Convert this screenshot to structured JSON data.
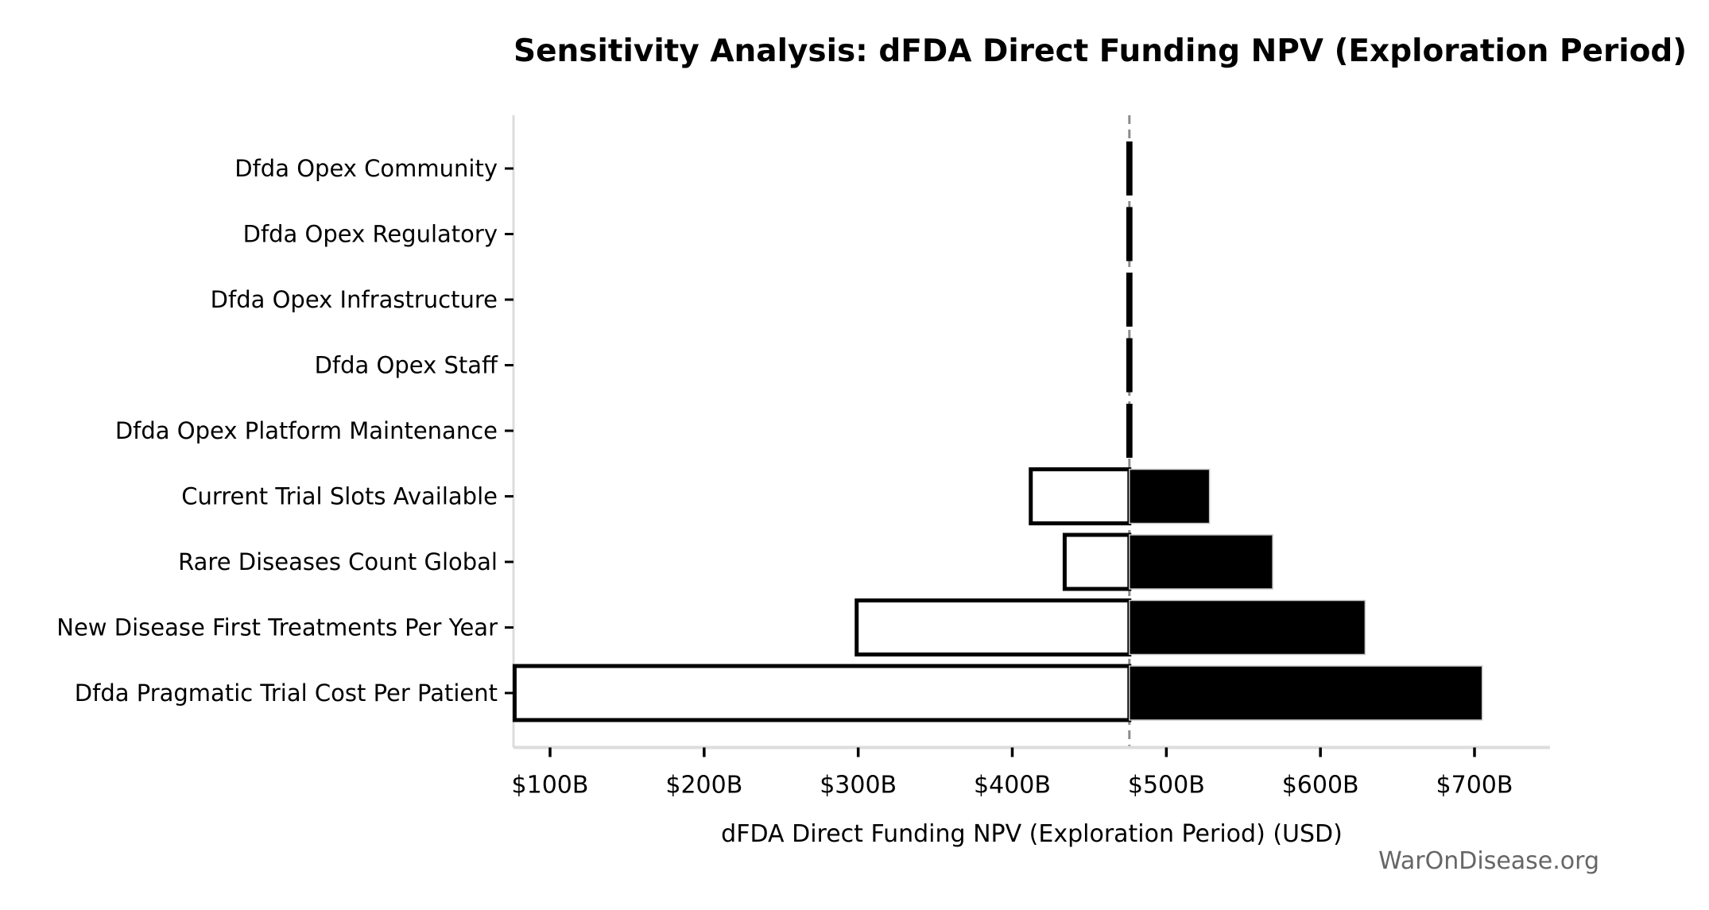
{
  "page": {
    "watermark": "WarOnDisease.org",
    "background_color": "#ffffff"
  },
  "chart_data": {
    "type": "bar",
    "subtype": "tornado-sensitivity",
    "orientation": "horizontal",
    "title": "Sensitivity Analysis: dFDA Direct Funding NPV (Exploration Period)",
    "xlabel": "dFDA Direct Funding NPV (Exploration Period) (USD)",
    "ylabel": "",
    "value_unit": "billions of USD",
    "baseline_value": 476,
    "xlim": [
      76,
      748
    ],
    "x_ticks": [
      100,
      200,
      300,
      400,
      500,
      600,
      700
    ],
    "x_tick_labels": [
      "$100B",
      "$200B",
      "$300B",
      "$400B",
      "$500B",
      "$600B",
      "$700B"
    ],
    "grid": false,
    "legend": null,
    "categories_top_to_bottom": [
      "Dfda Opex Community",
      "Dfda Opex Regulatory",
      "Dfda Opex Infrastructure",
      "Dfda Opex Staff",
      "Dfda Opex Platform Maintenance",
      "Current Trial Slots Available",
      "Rare Diseases Count Global",
      "New Disease First Treatments Per Year",
      "Dfda Pragmatic Trial Cost Per Patient"
    ],
    "rows": [
      {
        "label": "Dfda Opex Community",
        "low": 474,
        "high": 478
      },
      {
        "label": "Dfda Opex Regulatory",
        "low": 474,
        "high": 478
      },
      {
        "label": "Dfda Opex Infrastructure",
        "low": 474,
        "high": 478
      },
      {
        "label": "Dfda Opex Staff",
        "low": 474,
        "high": 478
      },
      {
        "label": "Dfda Opex Platform Maintenance",
        "low": 474,
        "high": 478
      },
      {
        "label": "Current Trial Slots Available",
        "low": 412,
        "high": 528
      },
      {
        "label": "Rare Diseases Count Global",
        "low": 434,
        "high": 569
      },
      {
        "label": "New Disease First Treatments Per Year",
        "low": 299,
        "high": 629
      },
      {
        "label": "Dfda Pragmatic Trial Cost Per Patient",
        "low": 77,
        "high": 705
      }
    ],
    "colors": {
      "low_side_fill": "#ffffff",
      "high_side_fill": "#000000",
      "bar_border": "#000000",
      "high_bar_outline": "#c8c8c8",
      "baseline_line": "#8c8c8c",
      "axis_line": "#dcdcdc",
      "tick_mark": "#000000",
      "text": "#000000",
      "watermark": "#666666"
    }
  }
}
